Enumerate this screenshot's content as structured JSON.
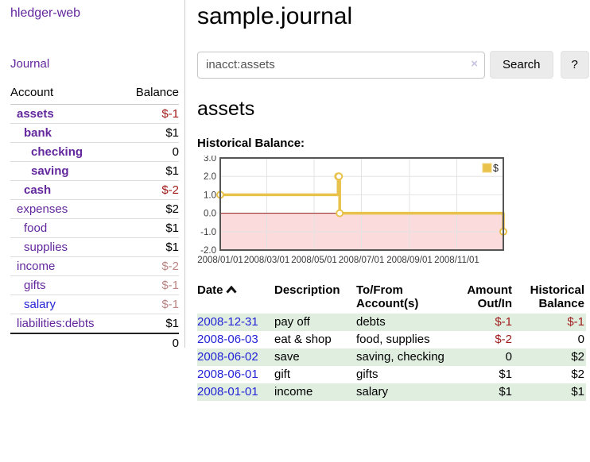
{
  "colors": {
    "link_purple": "#63279d",
    "link_blue": "#2424d6",
    "negative_strong": "#a01c1c",
    "negative_muted": "#bd8484",
    "row_stripe_green": "#e0eee0",
    "series_gold": "#e9c24c"
  },
  "sidebar": {
    "brand": "hledger-web",
    "nav_journal": "Journal",
    "accounts": {
      "headers": {
        "account": "Account",
        "balance": "Balance"
      },
      "rows": [
        {
          "account": "assets",
          "balance": "$-1"
        },
        {
          "account": "bank",
          "balance": "$1"
        },
        {
          "account": "checking",
          "balance": "0"
        },
        {
          "account": "saving",
          "balance": "$1"
        },
        {
          "account": "cash",
          "balance": "$-2"
        },
        {
          "account": "expenses",
          "balance": "$2"
        },
        {
          "account": "food",
          "balance": "$1"
        },
        {
          "account": "supplies",
          "balance": "$1"
        },
        {
          "account": "income",
          "balance": "$-2"
        },
        {
          "account": "gifts",
          "balance": "$-1"
        },
        {
          "account": "salary",
          "balance": "$-1"
        },
        {
          "account": "liabilities:debts",
          "balance": "$1"
        }
      ],
      "total": "0"
    }
  },
  "main": {
    "title": "sample.journal",
    "search": {
      "value": "inacct:assets",
      "clear_icon": "×",
      "search_label": "Search",
      "help_label": "?"
    },
    "account_heading": "assets",
    "register": {
      "headers": {
        "date": "Date",
        "description": "Description",
        "accounts": "To/From Account(s)",
        "amount": "Amount Out/In",
        "balance": "Historical Balance"
      },
      "rows": [
        {
          "date": "2008-12-31",
          "description": "pay off",
          "accounts": "debts",
          "amount": "$-1",
          "balance": "$-1"
        },
        {
          "date": "2008-06-03",
          "description": "eat & shop",
          "accounts": "food, supplies",
          "amount": "$-2",
          "balance": "0"
        },
        {
          "date": "2008-06-02",
          "description": "save",
          "accounts": "saving, checking",
          "amount": "0",
          "balance": "$2"
        },
        {
          "date": "2008-06-01",
          "description": "gift",
          "accounts": "gifts",
          "amount": "$1",
          "balance": "$2"
        },
        {
          "date": "2008-01-01",
          "description": "income",
          "accounts": "salary",
          "amount": "$1",
          "balance": "$1"
        }
      ]
    }
  },
  "chart_data": {
    "type": "line",
    "step": true,
    "title": "Historical Balance:",
    "series": [
      {
        "name": "$",
        "color": "#e9c24c",
        "points": [
          {
            "date": "2008-01-01",
            "value": 1
          },
          {
            "date": "2008-06-01",
            "value": 2
          },
          {
            "date": "2008-06-02",
            "value": 2
          },
          {
            "date": "2008-06-03",
            "value": 0
          },
          {
            "date": "2008-12-31",
            "value": -1
          }
        ]
      }
    ],
    "x_range": [
      "2008-01-01",
      "2008-12-31"
    ],
    "ylim": [
      -2,
      3
    ],
    "yticks": [
      "3.0",
      "2.0",
      "1.0",
      "0.0",
      "-1.0",
      "-2.0"
    ],
    "xticks": [
      "2008/01/01",
      "2008/03/01",
      "2008/05/01",
      "2008/07/01",
      "2008/09/01",
      "2008/11/01"
    ],
    "legend_position": "top-right",
    "grid": true,
    "below_zero_fill": "#fbdbdb",
    "zero_line_color": "#8e1a1a",
    "grid_color": "#e3e3e3",
    "border_color": "#555555"
  }
}
